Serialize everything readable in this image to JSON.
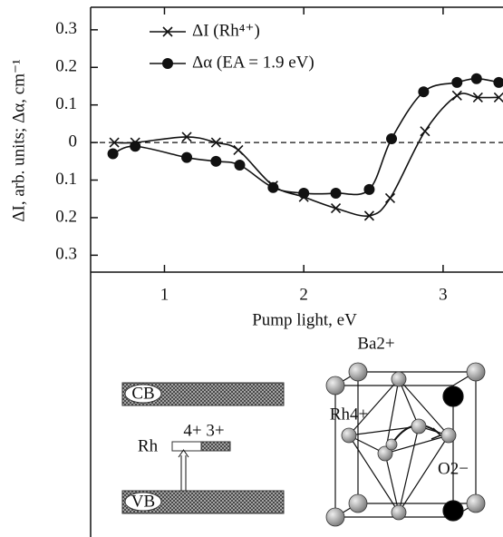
{
  "chart_data": {
    "type": "line",
    "xlabel": "Pump light, eV",
    "ylabel": "ΔI, arb. units; Δα, cm⁻¹",
    "xlim": [
      0.47,
      3.43
    ],
    "xticks": [
      1,
      2,
      3
    ],
    "ylim": [
      -0.345,
      0.36
    ],
    "yticks": [
      {
        "value": -0.3,
        "label": "0.3"
      },
      {
        "value": -0.2,
        "label": "0.2"
      },
      {
        "value": -0.1,
        "label": "0.1"
      },
      0,
      0.1,
      0.2,
      0.3
    ],
    "hline": 0,
    "legend": "upper left",
    "series": [
      {
        "name": "ΔI (Rh⁴⁺)",
        "marker": "x",
        "color": "#111111",
        "x": [
          0.64,
          0.79,
          1.16,
          1.37,
          1.53,
          1.78,
          2.0,
          2.23,
          2.47,
          2.62,
          2.87,
          3.1,
          3.25,
          3.4
        ],
        "values": [
          0.0,
          0.0,
          0.015,
          0.0,
          -0.02,
          -0.115,
          -0.145,
          -0.175,
          -0.195,
          -0.148,
          0.03,
          0.125,
          0.12,
          0.12
        ]
      },
      {
        "name": "Δα (EA = 1.9 eV)",
        "marker": "o",
        "color": "#111111",
        "x": [
          0.63,
          0.79,
          1.16,
          1.37,
          1.54,
          1.78,
          2.0,
          2.23,
          2.47,
          2.63,
          2.86,
          3.1,
          3.24,
          3.4
        ],
        "values": [
          -0.03,
          -0.01,
          -0.04,
          -0.05,
          -0.06,
          -0.12,
          -0.135,
          -0.135,
          -0.125,
          0.01,
          0.135,
          0.16,
          0.17,
          0.16
        ]
      }
    ]
  },
  "diagram": {
    "cb": "CB",
    "vb": "VB",
    "charges": "4+ 3+",
    "rh": "Rh",
    "ba": "Ba2+",
    "rh_ion": "Rh4+",
    "o_ion": "O2−"
  }
}
